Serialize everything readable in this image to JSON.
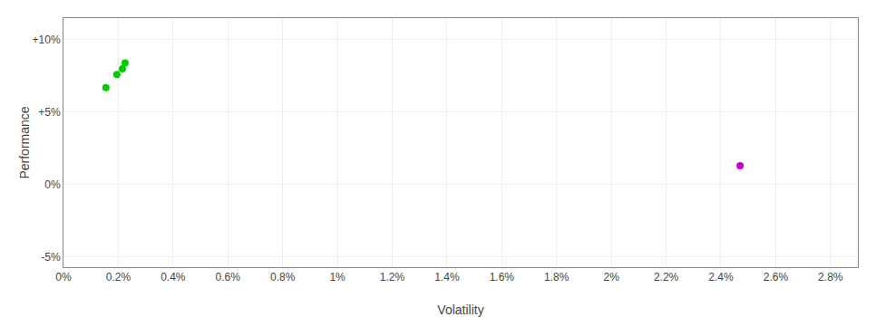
{
  "chart_data": {
    "type": "scatter",
    "x_label": "Volatility",
    "y_label": "Performance",
    "xlim": [
      0,
      0.029
    ],
    "ylim": [
      -0.057,
      0.115
    ],
    "xticks": [
      {
        "value": 0,
        "label": "0%"
      },
      {
        "value": 0.002,
        "label": "0.2%"
      },
      {
        "value": 0.004,
        "label": "0.4%"
      },
      {
        "value": 0.006,
        "label": "0.6%"
      },
      {
        "value": 0.008,
        "label": "0.8%"
      },
      {
        "value": 0.01,
        "label": "1%"
      },
      {
        "value": 0.012,
        "label": "1.2%"
      },
      {
        "value": 0.014,
        "label": "1.4%"
      },
      {
        "value": 0.016,
        "label": "1.6%"
      },
      {
        "value": 0.018,
        "label": "1.8%"
      },
      {
        "value": 0.02,
        "label": "2%"
      },
      {
        "value": 0.022,
        "label": "2.2%"
      },
      {
        "value": 0.024,
        "label": "2.4%"
      },
      {
        "value": 0.026,
        "label": "2.6%"
      },
      {
        "value": 0.028,
        "label": "2.8%"
      }
    ],
    "yticks": [
      {
        "value": -0.05,
        "label": "-5%"
      },
      {
        "value": 0,
        "label": "0%"
      },
      {
        "value": 0.05,
        "label": "+5%"
      },
      {
        "value": 0.1,
        "label": "+10%"
      }
    ],
    "grid": true,
    "series": [
      {
        "color": "#00cc00",
        "x": [
          0.00155,
          0.00195,
          0.00215,
          0.00225
        ],
        "values": [
          0.067,
          0.076,
          0.08,
          0.084
        ]
      },
      {
        "color": "#cc00cc",
        "x": [
          0.0247
        ],
        "values": [
          0.013
        ]
      }
    ]
  }
}
